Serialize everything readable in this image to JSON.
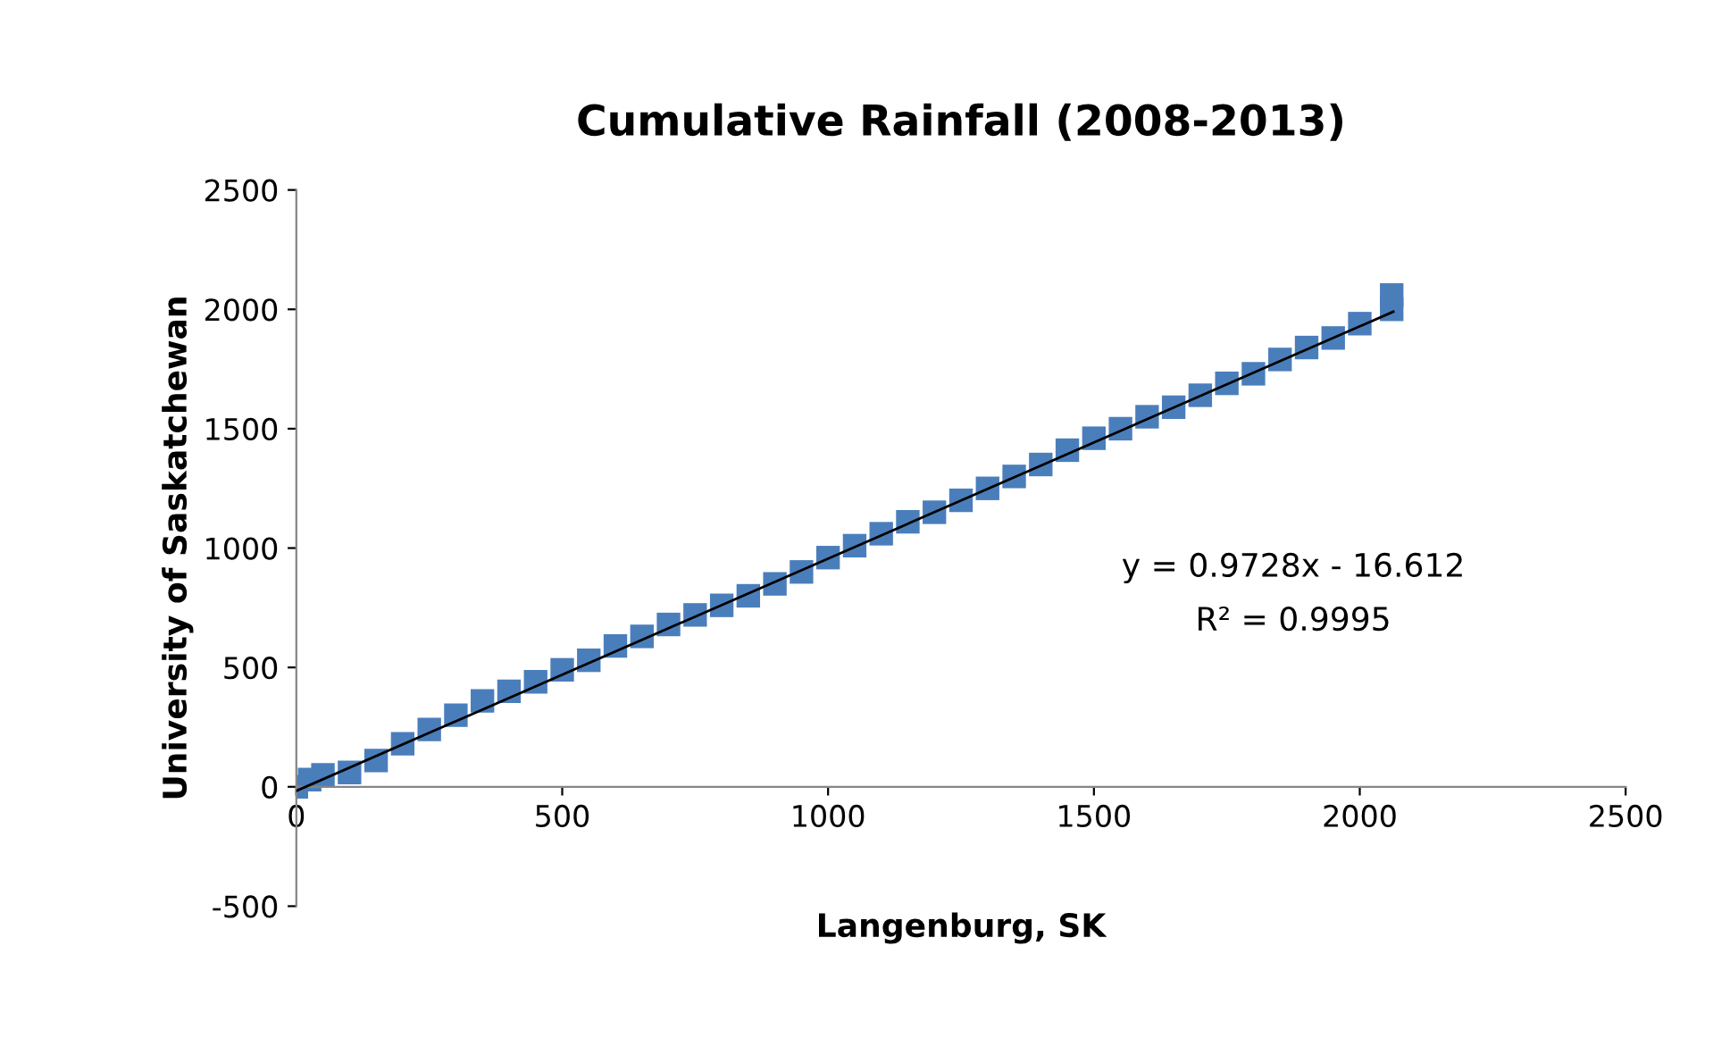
{
  "chart_data": {
    "type": "scatter",
    "title": "Cumulative Rainfall (2008-2013)",
    "xlabel": "Langenburg, SK",
    "ylabel": "University of Saskatchewan",
    "xlim": [
      0,
      2500
    ],
    "ylim": [
      -500,
      2500
    ],
    "xticks": [
      0,
      500,
      1000,
      1500,
      2000,
      2500
    ],
    "yticks": [
      -500,
      0,
      500,
      1000,
      1500,
      2000,
      2500
    ],
    "grid": false,
    "legend": false,
    "annotations": [
      "y = 0.9728x - 16.612",
      "R² = 0.9995"
    ],
    "series": [
      {
        "color": "#4a7ebb",
        "marker": "square",
        "x": [
          0,
          25,
          50,
          100,
          150,
          200,
          250,
          300,
          350,
          400,
          450,
          500,
          550,
          600,
          650,
          700,
          750,
          800,
          850,
          900,
          950,
          1000,
          1050,
          1100,
          1150,
          1200,
          1250,
          1300,
          1350,
          1400,
          1450,
          1500,
          1550,
          1600,
          1650,
          1700,
          1750,
          1800,
          1850,
          1900,
          1950,
          2000,
          2060,
          2060
        ],
        "values": [
          0,
          30,
          50,
          60,
          110,
          180,
          240,
          300,
          360,
          400,
          440,
          490,
          530,
          590,
          630,
          680,
          720,
          760,
          800,
          850,
          900,
          960,
          1010,
          1060,
          1110,
          1150,
          1200,
          1250,
          1300,
          1350,
          1410,
          1460,
          1500,
          1550,
          1590,
          1640,
          1690,
          1730,
          1790,
          1840,
          1880,
          1940,
          2000,
          2060
        ]
      },
      {
        "type": "line",
        "color": "#000000",
        "x": [
          0,
          2063
        ],
        "values": [
          -17,
          1990
        ]
      }
    ]
  }
}
